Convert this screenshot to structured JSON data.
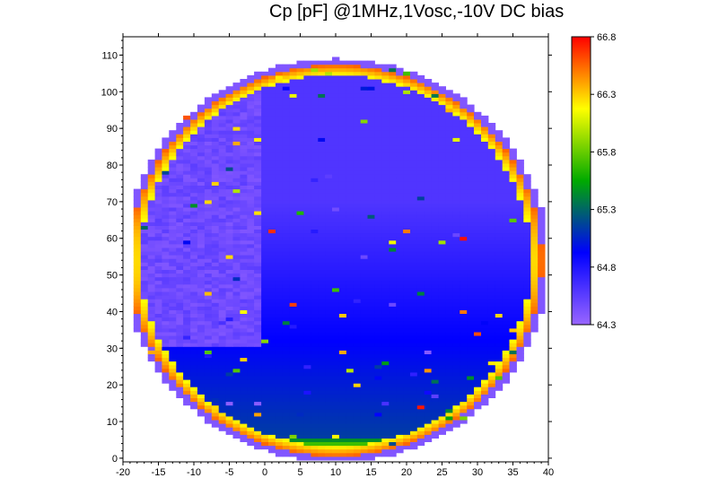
{
  "chart_data": {
    "type": "heatmap",
    "title": "Cp [pF] @1MHz,1Vosc,-10V DC bias",
    "xlabel": "",
    "ylabel": "",
    "xlim": [
      -20,
      40
    ],
    "ylim": [
      -1,
      115
    ],
    "x_ticks": [
      "-20",
      "-15",
      "-10",
      "-5",
      "0",
      "5",
      "10",
      "15",
      "20",
      "25",
      "30",
      "35",
      "40"
    ],
    "y_ticks": [
      "0",
      "10",
      "20",
      "30",
      "40",
      "50",
      "60",
      "70",
      "80",
      "90",
      "100",
      "110"
    ],
    "colorbar": {
      "min": 64.3,
      "max": 66.8,
      "ticks": [
        "66.8",
        "66.3",
        "65.8",
        "65.3",
        "64.8",
        "64.3"
      ],
      "colors": [
        "#9966ff",
        "#0000ff",
        "#00aa00",
        "#ffff00",
        "#ff0000"
      ]
    },
    "wafer": {
      "center_x": 10,
      "center_y": 54,
      "radius_x": 30,
      "radius_y": 55
    },
    "value_profile": {
      "bottom_edge_value": 66.7,
      "lower_region_value": 65.2,
      "upper_region_value": 64.6,
      "left_upper_value": 64.4,
      "rim_value": 66.8
    },
    "grid": false,
    "legend": "colorbar-right"
  }
}
